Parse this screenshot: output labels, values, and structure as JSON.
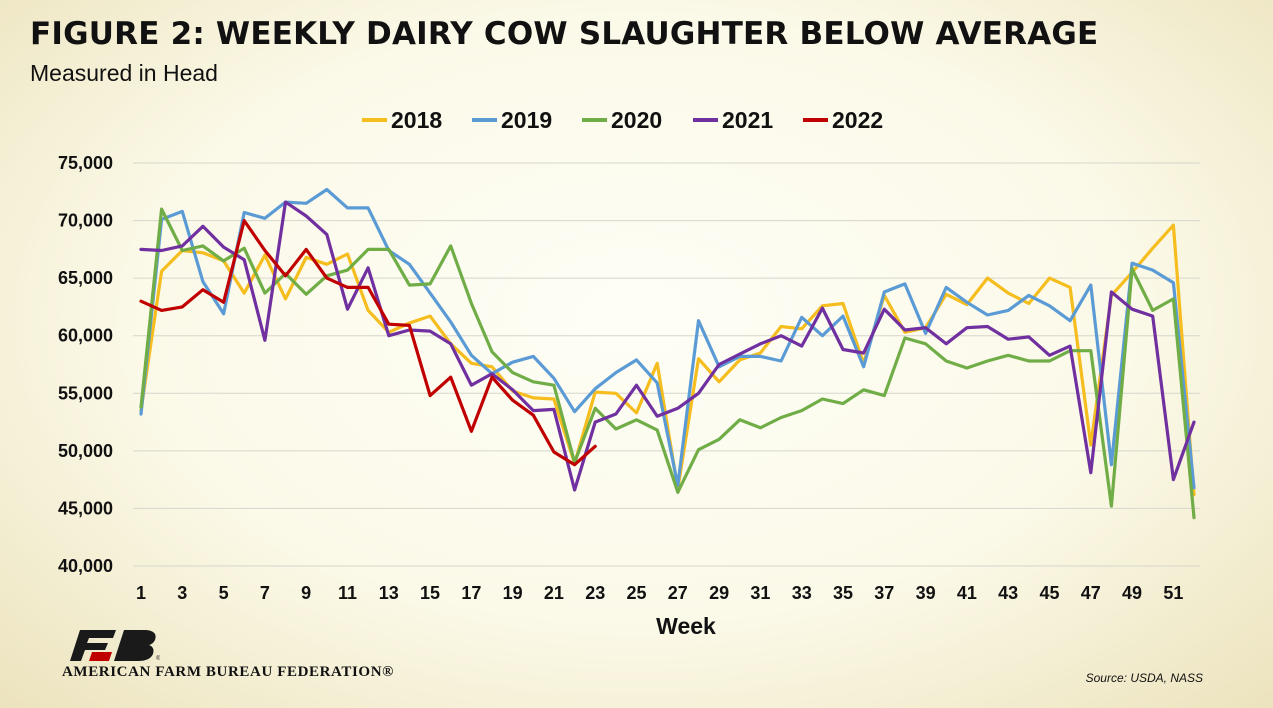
{
  "header": {
    "title": "FIGURE 2: WEEKLY DAIRY COW SLAUGHTER BELOW AVERAGE",
    "subtitle": "Measured in Head"
  },
  "footer": {
    "source": "Source: USDA, NASS",
    "org_name": "AMERICAN FARM BUREAU FEDERATION®"
  },
  "colors": {
    "2018": "#f5bd1e",
    "2019": "#5b9bd5",
    "2020": "#70ad47",
    "2021": "#7030a0",
    "2022": "#c00000",
    "logo": "#1a1a1a",
    "logo_accent": "#c00000"
  },
  "chart_data": {
    "type": "line",
    "title": "FIGURE 2: WEEKLY DAIRY COW SLAUGHTER BELOW AVERAGE",
    "subtitle": "Measured in Head",
    "xlabel": "Week",
    "ylabel": "",
    "ylim": [
      40000,
      75000
    ],
    "yticks": [
      "40,000",
      "45,000",
      "50,000",
      "55,000",
      "60,000",
      "65,000",
      "70,000",
      "75,000"
    ],
    "xlim": [
      1,
      52
    ],
    "xticks": [
      "1",
      "3",
      "5",
      "7",
      "9",
      "11",
      "13",
      "15",
      "17",
      "19",
      "21",
      "23",
      "25",
      "27",
      "29",
      "31",
      "33",
      "35",
      "37",
      "39",
      "41",
      "43",
      "45",
      "47",
      "49",
      "51"
    ],
    "grid": "horizontal",
    "legend": "top-center",
    "series": [
      {
        "name": "2018",
        "values": [
          53500,
          65600,
          67400,
          67200,
          66500,
          63700,
          67000,
          63200,
          66800,
          66200,
          67100,
          62200,
          60300,
          61100,
          61700,
          59300,
          57600,
          57300,
          55200,
          54600,
          54500,
          48900,
          55100,
          55000,
          53300,
          57600,
          46700,
          58000,
          56000,
          57900,
          58500,
          60800,
          60600,
          62600,
          62800,
          57600,
          63500,
          60300,
          60700,
          63600,
          62700,
          65000,
          63700,
          62800,
          65000,
          64200,
          50500,
          63500,
          65500,
          67600,
          69600,
          46200
        ]
      },
      {
        "name": "2019",
        "values": [
          53200,
          70100,
          70800,
          64700,
          61900,
          70700,
          70200,
          71600,
          71500,
          72700,
          71100,
          71100,
          67400,
          66200,
          63700,
          61200,
          58300,
          56700,
          57700,
          58200,
          56300,
          53400,
          55400,
          56800,
          57900,
          55900,
          47000,
          61300,
          57300,
          58200,
          58200,
          57800,
          61600,
          60000,
          61700,
          57300,
          63800,
          64500,
          60200,
          64200,
          62900,
          61800,
          62200,
          63500,
          62600,
          61300,
          64400,
          48800,
          66300,
          65700,
          64600,
          46800
        ]
      },
      {
        "name": "2020",
        "values": [
          53800,
          71000,
          67400,
          67800,
          66500,
          67600,
          63700,
          65400,
          63600,
          65200,
          65700,
          67500,
          67500,
          64400,
          64500,
          67800,
          62800,
          58600,
          56800,
          56000,
          55700,
          49000,
          53700,
          51900,
          52700,
          51800,
          46400,
          50100,
          51000,
          52700,
          52000,
          52900,
          53500,
          54500,
          54100,
          55300,
          54800,
          59800,
          59300,
          57800,
          57200,
          57800,
          58300,
          57800,
          57800,
          58700,
          58700,
          45200,
          65800,
          62200,
          63200,
          44200
        ]
      },
      {
        "name": "2021",
        "values": [
          67500,
          67400,
          67800,
          69500,
          67700,
          66600,
          59600,
          71600,
          70400,
          68800,
          62300,
          65900,
          60000,
          60500,
          60400,
          59300,
          55700,
          56700,
          55300,
          53500,
          53600,
          46600,
          52500,
          53200,
          55700,
          53000,
          53700,
          55000,
          57500,
          58400,
          59300,
          60000,
          59100,
          62400,
          58800,
          58500,
          62300,
          60500,
          60700,
          59300,
          60700,
          60800,
          59700,
          59900,
          58300,
          59100,
          48100,
          63800,
          62300,
          61700,
          47500,
          52500
        ]
      },
      {
        "name": "2022",
        "values": [
          63000,
          62200,
          62500,
          64000,
          62900,
          70000,
          67400,
          65200,
          67500,
          65000,
          64200,
          64200,
          61000,
          60900,
          54800,
          56400,
          51700,
          56400,
          54400,
          53100,
          49900,
          48800,
          50400
        ]
      }
    ]
  }
}
